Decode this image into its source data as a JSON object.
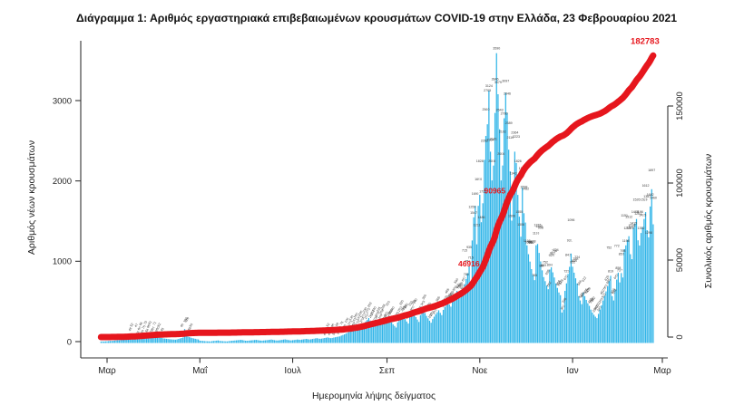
{
  "title": "Διάγραμμα 1: Αριθμός εργαστηριακά επιβεβαιωμένων κρουσμάτων COVID-19 στην Ελλάδα, 23 Φεβρουαρίου 2021",
  "chart_data": {
    "type": "bar",
    "title": "Διάγραμμα 1: Αριθμός εργαστηριακά επιβεβαιωμένων κρουσμάτων COVID-19 στην Ελλάδα, 23 Φεβρουαρίου 2021",
    "xlabel": "Ημερομηνία λήψης δείγματος",
    "ylabel_left": "Αριθμός νέων κρουσμάτων",
    "ylabel_right": "Συνολικός αριθμός κρουσμάτων",
    "x_tick_labels": [
      "Μαρ",
      "Μαΐ",
      "Ιουλ",
      "Σεπ",
      "Νοε",
      "Ιαν",
      "Μαρ"
    ],
    "x_tick_days": [
      4,
      65,
      126,
      188,
      249,
      310,
      369
    ],
    "left_ticks": [
      0,
      1000,
      2000,
      3000
    ],
    "left_ylim": [
      0,
      3740
    ],
    "right_ticks": [
      0,
      50000,
      100000,
      150000
    ],
    "right_ylim": [
      0,
      192000
    ],
    "grid": false,
    "legend": "none",
    "bar_color": "#31b5e8",
    "line_color": "#e6161d",
    "line": "cumulative sum of daily_values (right axis)",
    "cumulative_total": 182783,
    "annotations": [
      {
        "text": "46916",
        "value": 46916
      },
      {
        "text": "90965",
        "value": 90965
      },
      {
        "text": "182783",
        "value": 182783
      }
    ],
    "daily_values": [
      1,
      2,
      1,
      3,
      4,
      6,
      8,
      9,
      10,
      13,
      15,
      18,
      17,
      22,
      26,
      30,
      35,
      39,
      44,
      48,
      52,
      40,
      42,
      47,
      56,
      60,
      66,
      69,
      75,
      79,
      84,
      86,
      81,
      76,
      61,
      71,
      68,
      60,
      52,
      48,
      45,
      40,
      38,
      35,
      33,
      30,
      28,
      26,
      25,
      24,
      28,
      33,
      39,
      45,
      52,
      156,
      110,
      65,
      56,
      50,
      44,
      39,
      35,
      30,
      27,
      12,
      10,
      8,
      6,
      5,
      4,
      3,
      2,
      6,
      8,
      10,
      12,
      15,
      9,
      7,
      5,
      4,
      3,
      2,
      6,
      8,
      10,
      12,
      14,
      16,
      18,
      20,
      22,
      19,
      15,
      11,
      10,
      12,
      14,
      16,
      18,
      20,
      22,
      19,
      15,
      13,
      12,
      14,
      16,
      18,
      20,
      23,
      26,
      22,
      18,
      15,
      14,
      16,
      19,
      22,
      25,
      28,
      24,
      20,
      17,
      15,
      18,
      20,
      23,
      26,
      24,
      22,
      25,
      28,
      31,
      34,
      30,
      27,
      29,
      33,
      36,
      40,
      43,
      38,
      35,
      37,
      41,
      45,
      48,
      52,
      47,
      43,
      46,
      50,
      54,
      58,
      62,
      65,
      75,
      82,
      90,
      100,
      110,
      121,
      130,
      140,
      151,
      160,
      170,
      181,
      190,
      203,
      212,
      230,
      250,
      270,
      293,
      262,
      251,
      240,
      230,
      225,
      235,
      245,
      258,
      268,
      245,
      230,
      310,
      285,
      260,
      240,
      215,
      195,
      175,
      240,
      290,
      320,
      345,
      310,
      280,
      250,
      225,
      310,
      350,
      375,
      340,
      305,
      275,
      245,
      330,
      365,
      390,
      355,
      320,
      290,
      260,
      235,
      280,
      310,
      340,
      365,
      390,
      358,
      330,
      395,
      430,
      465,
      500,
      462,
      435,
      508,
      550,
      590,
      630,
      580,
      545,
      620,
      667,
      715,
      780,
      850,
      935,
      715,
      1259,
      1547,
      1690,
      1211,
      1690,
      1828,
      1486,
      1722,
      2262,
      2560,
      2705,
      3124,
      2364,
      2006,
      2191,
      2846,
      3590,
      3079,
      2643,
      2006,
      2192,
      2780,
      3097,
      2846,
      2389,
      2119,
      1506,
      1943,
      2364,
      2223,
      1826,
      1555,
      1306,
      1919,
      1598,
      1482,
      1198,
      1088,
      996,
      902,
      828,
      765,
      1199,
      1215,
      1104,
      998,
      887,
      803,
      752,
      698,
      652,
      898,
      925,
      862,
      798,
      724,
      668,
      612,
      578,
      362,
      398,
      632,
      725,
      842,
      931,
      1096,
      932,
      858,
      788,
      724,
      566,
      512,
      466,
      612,
      565,
      519,
      478,
      445,
      398,
      362,
      334,
      310,
      292,
      345,
      398,
      452,
      512,
      566,
      625,
      688,
      752,
      819,
      566,
      512,
      645,
      772,
      858,
      737,
      853,
      798,
      1151,
      1198,
      1265,
      1312,
      1088,
      1026,
      1415,
      1468,
      1526,
      1261,
      1196,
      1352,
      1425,
      1526,
      1612,
      1387,
      1298,
      1682,
      1897,
      1460
    ]
  }
}
